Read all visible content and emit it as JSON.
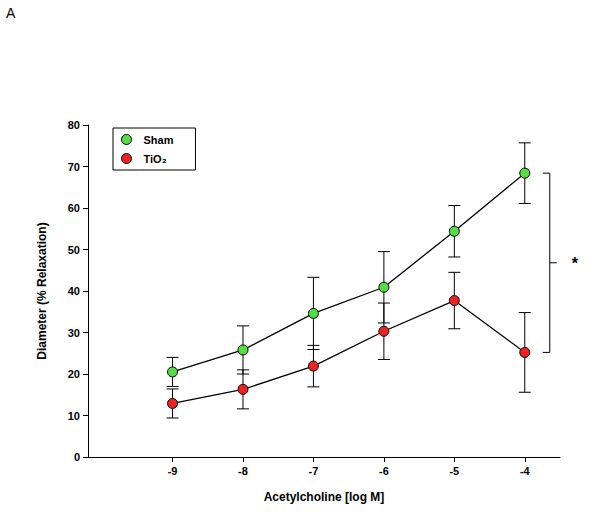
{
  "chart_data": {
    "type": "line",
    "panel_label": "A",
    "annotation": "*",
    "x_label": "Acetylcholine [log M]",
    "y_label": "Diameter (% Relaxation)",
    "x": [
      -9,
      -8,
      -7,
      -6,
      -5,
      -4
    ],
    "xlim": [
      -10.2,
      -3.5
    ],
    "xticks": [
      -9,
      -8,
      -7,
      -6,
      -5,
      -4
    ],
    "ylim": [
      0,
      80
    ],
    "yticks": [
      0,
      10,
      20,
      30,
      40,
      50,
      60,
      70,
      80
    ],
    "grid": false,
    "legend": "upper left",
    "marker": "circle",
    "series": [
      {
        "name": "Sham",
        "color": "#55dd44",
        "values": [
          20.5,
          25.8,
          34.6,
          40.9,
          54.4,
          68.4
        ],
        "errors": [
          3.5,
          5.8,
          8.7,
          8.6,
          6.2,
          7.3
        ]
      },
      {
        "name": "TiO₂",
        "color": "#ee2222",
        "values": [
          12.9,
          16.3,
          21.9,
          30.3,
          37.7,
          25.2
        ],
        "errors": [
          3.5,
          4.7,
          5.0,
          6.8,
          6.8,
          9.6
        ]
      }
    ]
  }
}
